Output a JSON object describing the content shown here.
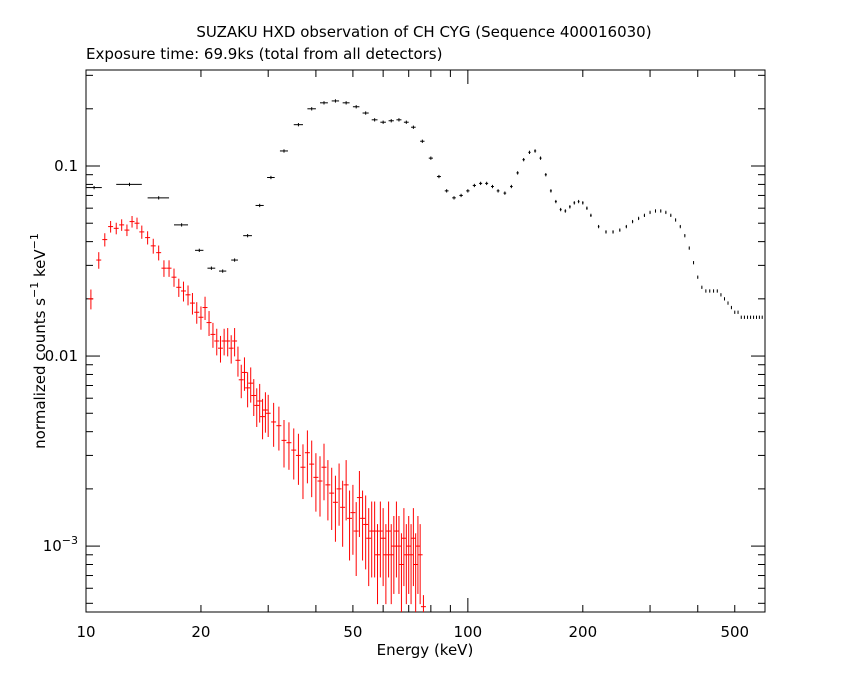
{
  "chart_data": {
    "type": "scatter",
    "title": "SUZAKU HXD observation of CH CYG (Sequence 400016030)",
    "subtitle": "Exposure time: 69.9ks (total from all detectors)",
    "xlabel": "Energy (keV)",
    "ylabel": "normalized counts s^-1 keV^-1",
    "xscale": "log",
    "yscale": "log",
    "xlim": [
      10,
      600
    ],
    "ylim": [
      0.00045,
      0.32
    ],
    "xtick_labels": [
      "10",
      "20",
      "50",
      "100",
      "200",
      "500"
    ],
    "ytick_labels": [
      "10^-3",
      "0.01",
      "0.1"
    ],
    "grid": false,
    "series": [
      {
        "color": "#000000",
        "x": [
          10.5,
          13.0,
          15.5,
          17.8,
          19.8,
          21.3,
          22.8,
          24.5,
          26.5,
          28.5,
          30.5,
          33,
          36,
          39,
          42,
          45,
          48,
          51,
          54,
          57,
          60,
          63,
          66,
          69,
          72,
          76,
          80,
          84,
          88,
          92,
          96,
          100,
          104,
          108,
          112,
          116,
          120,
          125,
          130,
          135,
          140,
          145,
          150,
          155,
          160,
          165,
          170,
          175,
          180,
          185,
          190,
          195,
          200,
          205,
          210,
          220,
          230,
          240,
          250,
          260,
          270,
          280,
          290,
          300,
          310,
          320,
          330,
          340,
          350,
          360,
          370,
          380,
          390,
          400,
          410,
          420,
          430,
          440,
          450,
          460,
          470,
          480,
          490,
          500,
          510,
          520,
          530,
          540,
          550,
          560,
          570,
          580,
          590
        ],
        "y": [
          0.077,
          0.08,
          0.068,
          0.049,
          0.036,
          0.029,
          0.028,
          0.032,
          0.043,
          0.062,
          0.087,
          0.12,
          0.165,
          0.2,
          0.215,
          0.22,
          0.215,
          0.205,
          0.19,
          0.175,
          0.17,
          0.173,
          0.175,
          0.17,
          0.16,
          0.135,
          0.11,
          0.088,
          0.074,
          0.068,
          0.07,
          0.074,
          0.079,
          0.081,
          0.081,
          0.078,
          0.074,
          0.072,
          0.078,
          0.092,
          0.108,
          0.118,
          0.12,
          0.11,
          0.09,
          0.074,
          0.065,
          0.059,
          0.058,
          0.061,
          0.064,
          0.065,
          0.064,
          0.06,
          0.055,
          0.048,
          0.045,
          0.045,
          0.046,
          0.048,
          0.051,
          0.053,
          0.055,
          0.057,
          0.058,
          0.058,
          0.057,
          0.055,
          0.052,
          0.048,
          0.043,
          0.037,
          0.031,
          0.026,
          0.023,
          0.022,
          0.022,
          0.022,
          0.022,
          0.021,
          0.02,
          0.019,
          0.018,
          0.017,
          0.017,
          0.016,
          0.016,
          0.016,
          0.016,
          0.016,
          0.016,
          0.016,
          0.016
        ],
        "xerr_lo": [
          10.0,
          12.0,
          14.5,
          17.0,
          19.3,
          20.8,
          22.3,
          24.0,
          25.8,
          27.8,
          29.8,
          32.2,
          35.0,
          38.0,
          41.0,
          44.0,
          47.0,
          50.0,
          53.0,
          56.0,
          59.0,
          62.0,
          65.0,
          68.0,
          71.0,
          75.0,
          79.0,
          83.0,
          87.0,
          91.0,
          95.0,
          99.0,
          103.0,
          107.0,
          111.0,
          115.0,
          119.0,
          124.0,
          129.0,
          134.0,
          139.0,
          144.0,
          149.0,
          154.0,
          159.0,
          164.0,
          169.0,
          174.0,
          179.0,
          184.0,
          189.0,
          194.0,
          199.0,
          204.0,
          209.0,
          219.0,
          229.0,
          239.0,
          249.0,
          259.0,
          269.0,
          279.0,
          289.0,
          299.0,
          309.0,
          319.0,
          329.0,
          339.0,
          349.0,
          359.0,
          369.0,
          379.0,
          389.0,
          399.0,
          409.0,
          419.0,
          429.0,
          439.0,
          449.0,
          459.0,
          469.0,
          479.0,
          489.0,
          499.0,
          509.0,
          519.0,
          529.0,
          539.0,
          549.0,
          559.0,
          569.0,
          579.0,
          589.0
        ],
        "xerr_hi": [
          11.0,
          14.0,
          16.5,
          18.5,
          20.3,
          21.8,
          23.3,
          25.0,
          27.2,
          29.2,
          31.2,
          33.8,
          37.0,
          40.0,
          43.0,
          46.0,
          49.0,
          52.0,
          55.0,
          58.0,
          61.0,
          64.0,
          67.0,
          70.0,
          73.0,
          77.0,
          81.0,
          85.0,
          89.0,
          93.0,
          97.0,
          101.0,
          105.0,
          109.0,
          113.0,
          117.0,
          121.0,
          126.0,
          131.0,
          136.0,
          141.0,
          146.0,
          151.0,
          156.0,
          161.0,
          166.0,
          171.0,
          176.0,
          181.0,
          186.0,
          191.0,
          196.0,
          201.0,
          206.0,
          211.0,
          221.0,
          231.0,
          241.0,
          251.0,
          261.0,
          271.0,
          281.0,
          291.0,
          301.0,
          311.0,
          321.0,
          331.0,
          341.0,
          351.0,
          361.0,
          371.0,
          381.0,
          391.0,
          401.0,
          411.0,
          421.0,
          431.0,
          441.0,
          451.0,
          461.0,
          471.0,
          481.0,
          491.0,
          501.0,
          511.0,
          521.0,
          531.0,
          541.0,
          551.0,
          561.0,
          571.0,
          581.0,
          591.0
        ]
      },
      {
        "color": "#ff0000",
        "x": [
          10.3,
          10.8,
          11.2,
          11.6,
          12.0,
          12.4,
          12.8,
          13.2,
          13.6,
          14.0,
          14.5,
          15.0,
          15.5,
          16.0,
          16.5,
          17.0,
          17.5,
          18.0,
          18.5,
          19.0,
          19.5,
          20.0,
          20.5,
          21.0,
          21.5,
          22.0,
          22.5,
          23.0,
          23.5,
          24.0,
          24.5,
          25.0,
          25.5,
          26.0,
          26.5,
          27.0,
          27.5,
          28.0,
          28.5,
          29.0,
          29.5,
          30.0,
          31.0,
          32.0,
          33.0,
          34.0,
          35.0,
          36.0,
          37.0,
          38.0,
          39.0,
          40.0,
          41.0,
          42.0,
          43.0,
          44.0,
          45.0,
          46.0,
          47.0,
          48.0,
          49.0,
          50.0,
          51.0,
          52.0,
          53.0,
          54.0,
          55.0,
          56.0,
          57.0,
          58.0,
          59.0,
          60.0,
          61.0,
          62.0,
          63.0,
          64.0,
          65.0,
          66.0,
          67.0,
          68.0,
          69.0,
          70.0,
          71.0,
          72.0,
          73.0,
          74.0,
          75.0,
          76.5
        ],
        "y": [
          0.02,
          0.032,
          0.041,
          0.048,
          0.047,
          0.049,
          0.046,
          0.051,
          0.05,
          0.045,
          0.042,
          0.038,
          0.035,
          0.029,
          0.029,
          0.026,
          0.023,
          0.022,
          0.021,
          0.019,
          0.017,
          0.016,
          0.018,
          0.015,
          0.013,
          0.012,
          0.011,
          0.012,
          0.012,
          0.011,
          0.012,
          0.0095,
          0.0075,
          0.0082,
          0.0068,
          0.0072,
          0.0062,
          0.0055,
          0.0058,
          0.0048,
          0.0052,
          0.005,
          0.0045,
          0.0043,
          0.0036,
          0.0035,
          0.0032,
          0.003,
          0.0026,
          0.0031,
          0.0027,
          0.0023,
          0.0022,
          0.0026,
          0.0021,
          0.0019,
          0.0017,
          0.002,
          0.0016,
          0.0021,
          0.0014,
          0.0015,
          0.0012,
          0.0018,
          0.0014,
          0.0013,
          0.0011,
          0.0012,
          0.0012,
          0.0009,
          0.0012,
          0.0011,
          0.0009,
          0.0012,
          0.0009,
          0.001,
          0.0012,
          0.001,
          0.0008,
          0.0011,
          0.0009,
          0.001,
          0.0009,
          0.0011,
          0.0008,
          0.001,
          0.0009,
          0.00048
        ],
        "yerr_frac": [
          0.12,
          0.1,
          0.08,
          0.07,
          0.07,
          0.07,
          0.07,
          0.07,
          0.07,
          0.08,
          0.08,
          0.09,
          0.09,
          0.1,
          0.1,
          0.11,
          0.11,
          0.12,
          0.12,
          0.13,
          0.13,
          0.14,
          0.14,
          0.15,
          0.15,
          0.16,
          0.16,
          0.16,
          0.17,
          0.17,
          0.17,
          0.18,
          0.2,
          0.2,
          0.21,
          0.21,
          0.22,
          0.23,
          0.23,
          0.24,
          0.24,
          0.25,
          0.26,
          0.26,
          0.28,
          0.28,
          0.3,
          0.3,
          0.32,
          0.31,
          0.33,
          0.34,
          0.35,
          0.33,
          0.35,
          0.36,
          0.38,
          0.36,
          0.38,
          0.35,
          0.4,
          0.4,
          0.42,
          0.38,
          0.4,
          0.42,
          0.44,
          0.43,
          0.43,
          0.45,
          0.43,
          0.44,
          0.45,
          0.43,
          0.45,
          0.44,
          0.43,
          0.44,
          0.46,
          0.44,
          0.45,
          0.44,
          0.45,
          0.44,
          0.46,
          0.44,
          0.45,
          0.15
        ]
      }
    ]
  }
}
